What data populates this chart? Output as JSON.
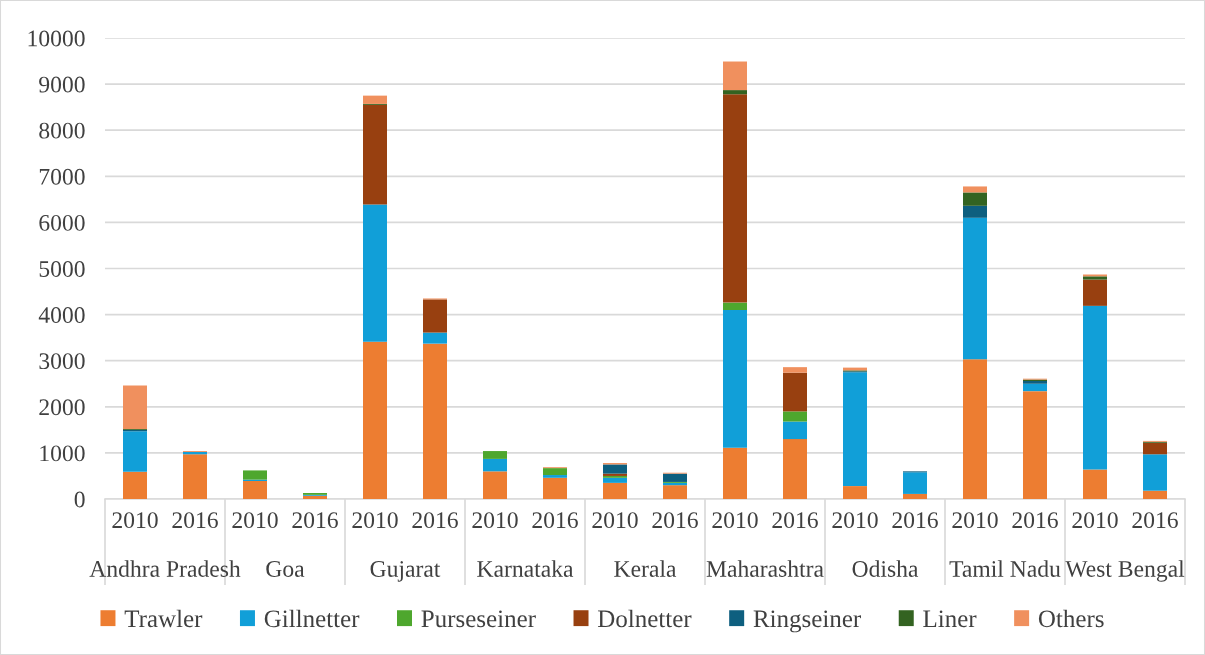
{
  "chart_data": {
    "type": "bar",
    "stacked": true,
    "categories": [
      "2010",
      "2016",
      "2010",
      "2016",
      "2010",
      "2016",
      "2010",
      "2016",
      "2010",
      "2016",
      "2010",
      "2016",
      "2010",
      "2016",
      "2010",
      "2016",
      "2010",
      "2016"
    ],
    "annotations": [
      "Andhra Pradesh",
      "Goa",
      "Gujarat",
      "Karnataka",
      "Kerala",
      "Maharashtra",
      "Odisha",
      "Tamil Nadu",
      "West Bengal"
    ],
    "series": [
      {
        "name": "Trawler",
        "color": "#ed7d31",
        "values": [
          590,
          970,
          390,
          70,
          3410,
          3370,
          600,
          460,
          350,
          300,
          1110,
          1300,
          280,
          110,
          3030,
          2340,
          640,
          180
        ]
      },
      {
        "name": "Gillnetter",
        "color": "#119fd8",
        "values": [
          880,
          50,
          30,
          20,
          2980,
          240,
          270,
          60,
          110,
          50,
          2990,
          380,
          2470,
          470,
          3070,
          160,
          3550,
          790
        ]
      },
      {
        "name": "Purseseiner",
        "color": "#4ea72e",
        "values": [
          null,
          null,
          200,
          40,
          null,
          null,
          170,
          150,
          40,
          20,
          160,
          220,
          null,
          null,
          null,
          null,
          null,
          null
        ]
      },
      {
        "name": "Dolnetter",
        "color": "#984010",
        "values": [
          null,
          null,
          null,
          null,
          2160,
          720,
          null,
          null,
          50,
          null,
          4520,
          840,
          null,
          null,
          null,
          null,
          570,
          250
        ]
      },
      {
        "name": "Ringseiner",
        "color": "#0e5f7f",
        "values": [
          30,
          null,
          null,
          null,
          null,
          null,
          null,
          null,
          200,
          180,
          null,
          null,
          20,
          20,
          260,
          60,
          null,
          null
        ]
      },
      {
        "name": "Liner",
        "color": "#336321",
        "values": [
          20,
          null,
          null,
          null,
          20,
          null,
          null,
          null,
          null,
          null,
          90,
          null,
          20,
          null,
          290,
          30,
          70,
          20
        ]
      },
      {
        "name": "Others",
        "color": "#f0905e",
        "values": [
          940,
          20,
          null,
          null,
          180,
          20,
          null,
          20,
          30,
          20,
          620,
          120,
          60,
          null,
          130,
          20,
          40,
          20
        ]
      }
    ],
    "ylim": [
      0,
      10000
    ],
    "yticks": [
      0,
      1000,
      2000,
      3000,
      4000,
      5000,
      6000,
      7000,
      8000,
      9000,
      10000
    ],
    "grid": "y",
    "legend": "bottom"
  }
}
